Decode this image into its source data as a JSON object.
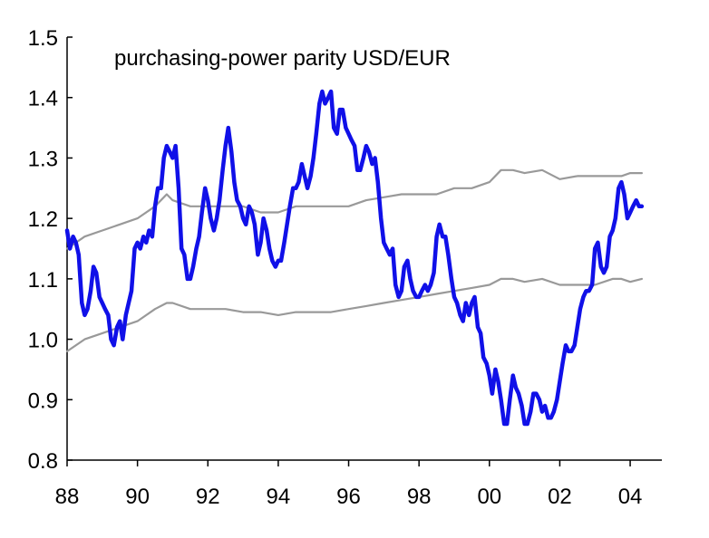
{
  "chart_data": {
    "type": "line",
    "title": "purchasing-power parity USD/EUR",
    "xlabel": "",
    "ylabel": "",
    "xlim": [
      1988.0,
      2004.9
    ],
    "ylim": [
      0.8,
      1.5
    ],
    "x_ticks": [
      1988,
      1990,
      1992,
      1994,
      1996,
      1998,
      2000,
      2002,
      2004
    ],
    "x_tick_labels": [
      "88",
      "90",
      "92",
      "94",
      "96",
      "98",
      "00",
      "02",
      "04"
    ],
    "y_ticks": [
      0.8,
      0.9,
      1.0,
      1.1,
      1.2,
      1.3,
      1.4,
      1.5
    ],
    "y_tick_labels": [
      "0.8",
      "0.9",
      "1.0",
      "1.1",
      "1.2",
      "1.3",
      "1.4",
      "1.5"
    ],
    "grid": false,
    "colors": {
      "exchange_rate": "#1010e8",
      "band": "#999999",
      "axis": "#000000"
    },
    "series": [
      {
        "key": "exchange_rate",
        "points": [
          [
            1988.0,
            1.18
          ],
          [
            1988.08,
            1.15
          ],
          [
            1988.17,
            1.17
          ],
          [
            1988.25,
            1.16
          ],
          [
            1988.33,
            1.14
          ],
          [
            1988.42,
            1.06
          ],
          [
            1988.5,
            1.04
          ],
          [
            1988.58,
            1.05
          ],
          [
            1988.67,
            1.08
          ],
          [
            1988.75,
            1.12
          ],
          [
            1988.83,
            1.11
          ],
          [
            1988.92,
            1.07
          ],
          [
            1989.0,
            1.06
          ],
          [
            1989.08,
            1.05
          ],
          [
            1989.17,
            1.04
          ],
          [
            1989.25,
            1.0
          ],
          [
            1989.33,
            0.99
          ],
          [
            1989.42,
            1.02
          ],
          [
            1989.5,
            1.03
          ],
          [
            1989.58,
            1.0
          ],
          [
            1989.67,
            1.04
          ],
          [
            1989.75,
            1.06
          ],
          [
            1989.83,
            1.08
          ],
          [
            1989.92,
            1.15
          ],
          [
            1990.0,
            1.16
          ],
          [
            1990.08,
            1.15
          ],
          [
            1990.17,
            1.17
          ],
          [
            1990.25,
            1.16
          ],
          [
            1990.33,
            1.18
          ],
          [
            1990.42,
            1.17
          ],
          [
            1990.5,
            1.22
          ],
          [
            1990.58,
            1.25
          ],
          [
            1990.67,
            1.25
          ],
          [
            1990.75,
            1.3
          ],
          [
            1990.83,
            1.32
          ],
          [
            1990.92,
            1.31
          ],
          [
            1991.0,
            1.3
          ],
          [
            1991.08,
            1.32
          ],
          [
            1991.17,
            1.25
          ],
          [
            1991.25,
            1.15
          ],
          [
            1991.33,
            1.14
          ],
          [
            1991.42,
            1.1
          ],
          [
            1991.5,
            1.1
          ],
          [
            1991.58,
            1.12
          ],
          [
            1991.67,
            1.15
          ],
          [
            1991.75,
            1.17
          ],
          [
            1991.83,
            1.21
          ],
          [
            1991.92,
            1.25
          ],
          [
            1992.0,
            1.23
          ],
          [
            1992.08,
            1.2
          ],
          [
            1992.17,
            1.18
          ],
          [
            1992.25,
            1.2
          ],
          [
            1992.33,
            1.23
          ],
          [
            1992.42,
            1.28
          ],
          [
            1992.5,
            1.32
          ],
          [
            1992.58,
            1.35
          ],
          [
            1992.67,
            1.31
          ],
          [
            1992.75,
            1.26
          ],
          [
            1992.83,
            1.23
          ],
          [
            1992.92,
            1.22
          ],
          [
            1993.0,
            1.2
          ],
          [
            1993.08,
            1.19
          ],
          [
            1993.17,
            1.22
          ],
          [
            1993.25,
            1.21
          ],
          [
            1993.33,
            1.19
          ],
          [
            1993.42,
            1.14
          ],
          [
            1993.5,
            1.16
          ],
          [
            1993.58,
            1.2
          ],
          [
            1993.67,
            1.18
          ],
          [
            1993.75,
            1.15
          ],
          [
            1993.83,
            1.13
          ],
          [
            1993.92,
            1.12
          ],
          [
            1994.0,
            1.13
          ],
          [
            1994.08,
            1.13
          ],
          [
            1994.17,
            1.16
          ],
          [
            1994.25,
            1.19
          ],
          [
            1994.33,
            1.22
          ],
          [
            1994.42,
            1.25
          ],
          [
            1994.5,
            1.25
          ],
          [
            1994.58,
            1.26
          ],
          [
            1994.67,
            1.29
          ],
          [
            1994.75,
            1.27
          ],
          [
            1994.83,
            1.25
          ],
          [
            1994.92,
            1.27
          ],
          [
            1995.0,
            1.3
          ],
          [
            1995.08,
            1.34
          ],
          [
            1995.17,
            1.39
          ],
          [
            1995.25,
            1.41
          ],
          [
            1995.33,
            1.39
          ],
          [
            1995.42,
            1.4
          ],
          [
            1995.5,
            1.41
          ],
          [
            1995.58,
            1.35
          ],
          [
            1995.67,
            1.34
          ],
          [
            1995.75,
            1.38
          ],
          [
            1995.83,
            1.38
          ],
          [
            1995.92,
            1.35
          ],
          [
            1996.0,
            1.34
          ],
          [
            1996.08,
            1.33
          ],
          [
            1996.17,
            1.32
          ],
          [
            1996.25,
            1.28
          ],
          [
            1996.33,
            1.28
          ],
          [
            1996.42,
            1.3
          ],
          [
            1996.5,
            1.32
          ],
          [
            1996.58,
            1.31
          ],
          [
            1996.67,
            1.29
          ],
          [
            1996.75,
            1.3
          ],
          [
            1996.83,
            1.26
          ],
          [
            1996.92,
            1.2
          ],
          [
            1997.0,
            1.16
          ],
          [
            1997.08,
            1.15
          ],
          [
            1997.17,
            1.14
          ],
          [
            1997.25,
            1.15
          ],
          [
            1997.33,
            1.09
          ],
          [
            1997.42,
            1.07
          ],
          [
            1997.5,
            1.08
          ],
          [
            1997.58,
            1.12
          ],
          [
            1997.67,
            1.13
          ],
          [
            1997.75,
            1.1
          ],
          [
            1997.83,
            1.08
          ],
          [
            1997.92,
            1.07
          ],
          [
            1998.0,
            1.07
          ],
          [
            1998.08,
            1.08
          ],
          [
            1998.17,
            1.09
          ],
          [
            1998.25,
            1.08
          ],
          [
            1998.33,
            1.09
          ],
          [
            1998.42,
            1.11
          ],
          [
            1998.5,
            1.17
          ],
          [
            1998.58,
            1.19
          ],
          [
            1998.67,
            1.17
          ],
          [
            1998.75,
            1.17
          ],
          [
            1998.83,
            1.14
          ],
          [
            1998.92,
            1.1
          ],
          [
            1999.0,
            1.07
          ],
          [
            1999.08,
            1.06
          ],
          [
            1999.17,
            1.04
          ],
          [
            1999.25,
            1.03
          ],
          [
            1999.33,
            1.06
          ],
          [
            1999.42,
            1.04
          ],
          [
            1999.5,
            1.06
          ],
          [
            1999.58,
            1.07
          ],
          [
            1999.67,
            1.02
          ],
          [
            1999.75,
            1.01
          ],
          [
            1999.83,
            0.97
          ],
          [
            1999.92,
            0.96
          ],
          [
            2000.0,
            0.94
          ],
          [
            2000.08,
            0.91
          ],
          [
            2000.17,
            0.95
          ],
          [
            2000.25,
            0.93
          ],
          [
            2000.33,
            0.9
          ],
          [
            2000.42,
            0.86
          ],
          [
            2000.5,
            0.86
          ],
          [
            2000.58,
            0.9
          ],
          [
            2000.67,
            0.94
          ],
          [
            2000.75,
            0.92
          ],
          [
            2000.83,
            0.91
          ],
          [
            2000.92,
            0.89
          ],
          [
            2001.0,
            0.86
          ],
          [
            2001.08,
            0.86
          ],
          [
            2001.17,
            0.88
          ],
          [
            2001.25,
            0.91
          ],
          [
            2001.33,
            0.91
          ],
          [
            2001.42,
            0.9
          ],
          [
            2001.5,
            0.88
          ],
          [
            2001.58,
            0.89
          ],
          [
            2001.67,
            0.87
          ],
          [
            2001.75,
            0.87
          ],
          [
            2001.83,
            0.88
          ],
          [
            2001.92,
            0.9
          ],
          [
            2002.0,
            0.93
          ],
          [
            2002.08,
            0.96
          ],
          [
            2002.17,
            0.99
          ],
          [
            2002.25,
            0.98
          ],
          [
            2002.33,
            0.98
          ],
          [
            2002.42,
            0.99
          ],
          [
            2002.5,
            1.02
          ],
          [
            2002.58,
            1.05
          ],
          [
            2002.67,
            1.07
          ],
          [
            2002.75,
            1.08
          ],
          [
            2002.83,
            1.08
          ],
          [
            2002.92,
            1.09
          ],
          [
            2003.0,
            1.15
          ],
          [
            2003.08,
            1.16
          ],
          [
            2003.17,
            1.12
          ],
          [
            2003.25,
            1.11
          ],
          [
            2003.33,
            1.12
          ],
          [
            2003.42,
            1.17
          ],
          [
            2003.5,
            1.18
          ],
          [
            2003.58,
            1.2
          ],
          [
            2003.67,
            1.25
          ],
          [
            2003.75,
            1.26
          ],
          [
            2003.83,
            1.24
          ],
          [
            2003.92,
            1.2
          ],
          [
            2004.0,
            1.21
          ],
          [
            2004.08,
            1.22
          ],
          [
            2004.17,
            1.23
          ],
          [
            2004.25,
            1.22
          ],
          [
            2004.33,
            1.22
          ]
        ]
      },
      {
        "key": "upper_band",
        "points": [
          [
            1988.0,
            1.15
          ],
          [
            1988.5,
            1.17
          ],
          [
            1989.0,
            1.18
          ],
          [
            1989.5,
            1.19
          ],
          [
            1990.0,
            1.2
          ],
          [
            1990.5,
            1.22
          ],
          [
            1990.83,
            1.24
          ],
          [
            1991.0,
            1.23
          ],
          [
            1991.5,
            1.22
          ],
          [
            1992.0,
            1.22
          ],
          [
            1992.5,
            1.22
          ],
          [
            1993.0,
            1.22
          ],
          [
            1993.5,
            1.21
          ],
          [
            1994.0,
            1.21
          ],
          [
            1994.5,
            1.22
          ],
          [
            1995.0,
            1.22
          ],
          [
            1995.5,
            1.22
          ],
          [
            1996.0,
            1.22
          ],
          [
            1996.5,
            1.23
          ],
          [
            1997.0,
            1.235
          ],
          [
            1997.5,
            1.24
          ],
          [
            1998.0,
            1.24
          ],
          [
            1998.5,
            1.24
          ],
          [
            1999.0,
            1.25
          ],
          [
            1999.5,
            1.25
          ],
          [
            2000.0,
            1.26
          ],
          [
            2000.33,
            1.28
          ],
          [
            2000.67,
            1.28
          ],
          [
            2001.0,
            1.275
          ],
          [
            2001.5,
            1.28
          ],
          [
            2002.0,
            1.265
          ],
          [
            2002.5,
            1.27
          ],
          [
            2003.0,
            1.27
          ],
          [
            2003.5,
            1.27
          ],
          [
            2003.75,
            1.27
          ],
          [
            2004.0,
            1.275
          ],
          [
            2004.33,
            1.275
          ]
        ]
      },
      {
        "key": "lower_band",
        "points": [
          [
            1988.0,
            0.98
          ],
          [
            1988.5,
            1.0
          ],
          [
            1989.0,
            1.01
          ],
          [
            1989.5,
            1.02
          ],
          [
            1990.0,
            1.03
          ],
          [
            1990.5,
            1.05
          ],
          [
            1990.83,
            1.06
          ],
          [
            1991.0,
            1.06
          ],
          [
            1991.5,
            1.05
          ],
          [
            1992.0,
            1.05
          ],
          [
            1992.5,
            1.05
          ],
          [
            1993.0,
            1.045
          ],
          [
            1993.5,
            1.045
          ],
          [
            1994.0,
            1.04
          ],
          [
            1994.5,
            1.045
          ],
          [
            1995.0,
            1.045
          ],
          [
            1995.5,
            1.045
          ],
          [
            1996.0,
            1.05
          ],
          [
            1996.5,
            1.055
          ],
          [
            1997.0,
            1.06
          ],
          [
            1997.5,
            1.065
          ],
          [
            1998.0,
            1.07
          ],
          [
            1998.5,
            1.075
          ],
          [
            1999.0,
            1.08
          ],
          [
            1999.5,
            1.085
          ],
          [
            2000.0,
            1.09
          ],
          [
            2000.33,
            1.1
          ],
          [
            2000.67,
            1.1
          ],
          [
            2001.0,
            1.095
          ],
          [
            2001.5,
            1.1
          ],
          [
            2002.0,
            1.09
          ],
          [
            2002.5,
            1.09
          ],
          [
            2003.0,
            1.09
          ],
          [
            2003.5,
            1.1
          ],
          [
            2003.75,
            1.1
          ],
          [
            2004.0,
            1.095
          ],
          [
            2004.33,
            1.1
          ]
        ]
      }
    ]
  }
}
